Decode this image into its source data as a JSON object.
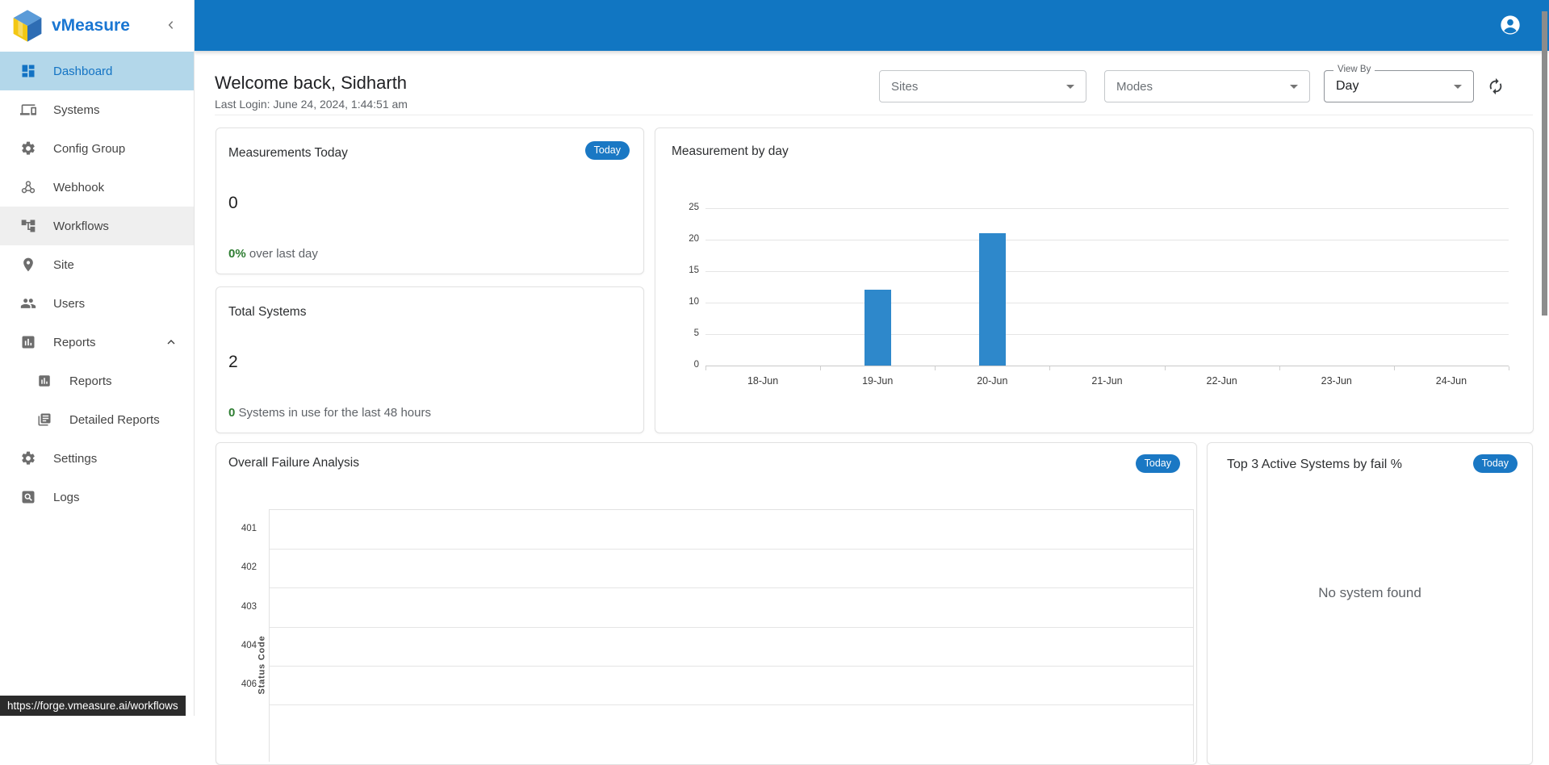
{
  "app": {
    "name": "vMeasure",
    "link_preview_url": "https://forge.vmeasure.ai/workflows"
  },
  "colors": {
    "header_blue": "#1176c2",
    "accent_blue": "#1976d2",
    "bar_blue": "#2e88cb",
    "badge_blue": "#1a78c4",
    "active_item_bg": "#b3d7ea",
    "delta_green": "#2e7d32"
  },
  "sidebar": {
    "logo_text": "vMeasure",
    "items": [
      {
        "label": "Dashboard",
        "state": "active"
      },
      {
        "label": "Systems",
        "state": "normal"
      },
      {
        "label": "Config Group",
        "state": "normal"
      },
      {
        "label": "Webhook",
        "state": "normal"
      },
      {
        "label": "Workflows",
        "state": "hovered"
      },
      {
        "label": "Site",
        "state": "normal"
      },
      {
        "label": "Users",
        "state": "normal"
      },
      {
        "label": "Reports",
        "state": "expanded"
      },
      {
        "label": "Reports",
        "state": "sub"
      },
      {
        "label": "Detailed Reports",
        "state": "sub"
      },
      {
        "label": "Settings",
        "state": "normal"
      },
      {
        "label": "Logs",
        "state": "normal"
      }
    ]
  },
  "welcome": {
    "title": "Welcome back, Sidharth",
    "last_login": "Last Login: June 24, 2024, 1:44:51 am"
  },
  "filters": {
    "sites_placeholder": "Sites",
    "modes_placeholder": "Modes",
    "view_by_label": "View By",
    "view_by_value": "Day"
  },
  "badge_today": "Today",
  "cards": {
    "measurements_today": {
      "title": "Measurements Today",
      "value": "0",
      "delta": "0%",
      "delta_suffix": "over last day"
    },
    "total_systems": {
      "title": "Total Systems",
      "value": "2",
      "delta": "0",
      "delta_suffix": "Systems in use for the last 48 hours"
    },
    "measurement_by_day": {
      "title": "Measurement by day"
    },
    "overall_failure": {
      "title": "Overall Failure Analysis",
      "ylabel": "Status Code"
    },
    "top3": {
      "title": "Top 3 Active Systems by fail %",
      "empty_text": "No system found"
    }
  },
  "chart_data": [
    {
      "type": "bar",
      "title": "Measurement by day",
      "categories": [
        "18-Jun",
        "19-Jun",
        "20-Jun",
        "21-Jun",
        "22-Jun",
        "23-Jun",
        "24-Jun"
      ],
      "values": [
        0,
        12,
        21,
        0,
        0,
        0,
        0
      ],
      "xlabel": "",
      "ylabel": "",
      "ylim": [
        0,
        25
      ],
      "yticks": [
        0,
        5,
        10,
        15,
        20,
        25
      ],
      "grid": "horizontal",
      "legend": "none",
      "bar_color": "#2e88cb"
    },
    {
      "type": "bar",
      "orientation": "horizontal",
      "title": "Overall Failure Analysis",
      "categories": [
        "401",
        "402",
        "403",
        "404",
        "406"
      ],
      "values": [
        0,
        0,
        0,
        0,
        0
      ],
      "xlabel": "",
      "ylabel": "Status Code",
      "legend": "none",
      "note": "no bars visible - empty dataset, chart cut off at viewport bottom"
    }
  ]
}
